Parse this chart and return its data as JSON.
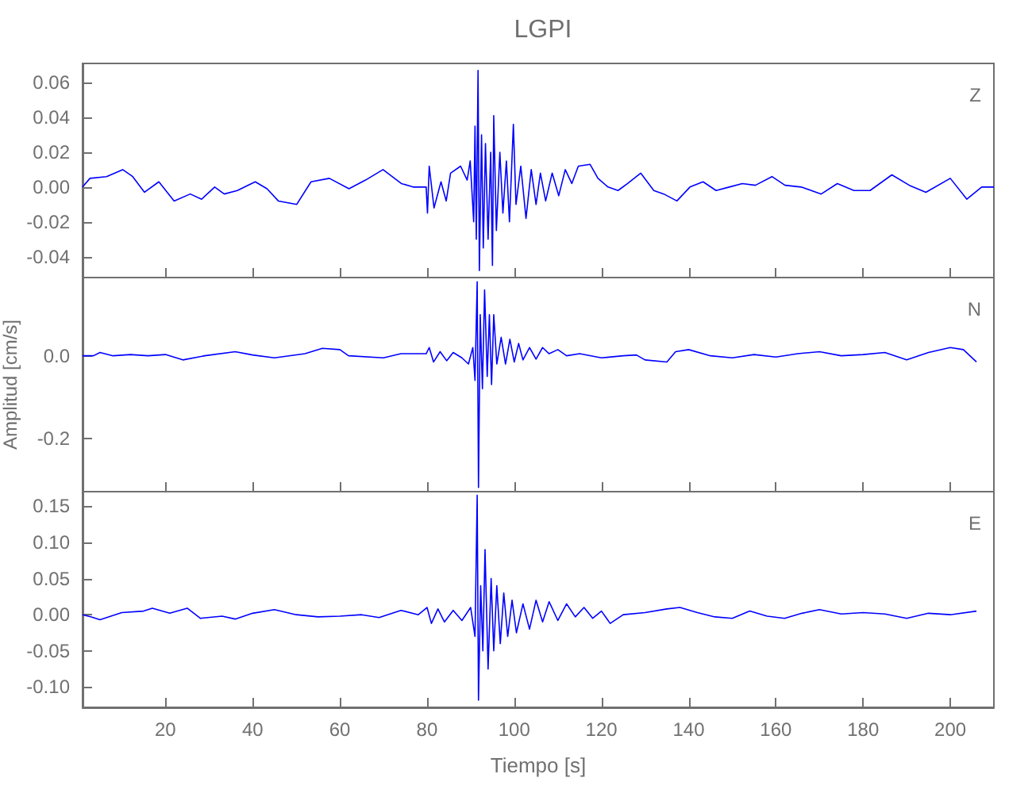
{
  "chart_data": [
    {
      "type": "line",
      "title": "LGPI",
      "annotations": [
        "Z"
      ],
      "xlim": [
        1,
        210
      ],
      "xticks": [
        20,
        40,
        60,
        80,
        100,
        120,
        140,
        160,
        180,
        200
      ],
      "tick_labels": "y",
      "ylim": [
        -0.052,
        0.071
      ],
      "yticks": [
        {
          "value": -0.04,
          "label": "-0.04"
        },
        {
          "value": -0.02,
          "label": "-0.02"
        },
        {
          "value": 0,
          "label": "0.00"
        },
        0.02,
        0.04,
        0.06
      ],
      "series": [
        {
          "color": "#0000ff",
          "x": [
            1,
            2.7,
            6.5,
            10.2,
            12.5,
            15.2,
            18.5,
            22,
            25.7,
            28.3,
            31.3,
            33.5,
            36.5,
            40.6,
            43.3,
            45.9,
            50.1,
            53.4,
            57.6,
            62.1,
            65.9,
            69.9,
            74.1,
            76.8,
            79.8,
            80.1,
            80.5,
            81.6,
            83.2,
            84.4,
            85.4,
            87.7,
            89.2,
            89.9,
            90.7,
            91,
            91.3,
            91.7,
            92,
            92.5,
            92.9,
            93.4,
            94,
            94.6,
            95,
            95.3,
            95.9,
            96.7,
            97.4,
            98.2,
            98.9,
            99.8,
            100.4,
            101.5,
            102.7,
            103.9,
            105,
            106,
            107.2,
            108.7,
            110.2,
            111.7,
            113.2,
            114.7,
            117.4,
            119.2,
            121.5,
            123.8,
            126,
            129,
            132,
            134.3,
            137.3,
            140.3,
            143.3,
            146.3,
            149.3,
            152.3,
            155.3,
            159.1,
            162.1,
            165.8,
            170.4,
            174.1,
            177.9,
            181.6,
            186.6,
            190.6,
            194.4,
            200,
            203.8,
            207.2,
            210
          ],
          "values": [
            0,
            0.005,
            0.006,
            0.01,
            0.006,
            -0.003,
            0.003,
            -0.008,
            -0.004,
            -0.007,
            0,
            -0.004,
            -0.002,
            0.003,
            -0.001,
            -0.008,
            -0.01,
            0.003,
            0.005,
            -0.001,
            0.004,
            0.01,
            0.002,
            0,
            0,
            -0.015,
            0.012,
            -0.012,
            0.003,
            -0.008,
            0.008,
            0.012,
            0.004,
            0.015,
            -0.02,
            0.035,
            -0.03,
            0.067,
            -0.048,
            0.03,
            -0.035,
            0.025,
            -0.03,
            0.02,
            -0.045,
            0.041,
            -0.025,
            0.02,
            -0.015,
            0.015,
            -0.02,
            0.036,
            -0.01,
            0.012,
            -0.018,
            0.01,
            -0.01,
            0.008,
            -0.008,
            0.008,
            -0.005,
            0.01,
            0.002,
            0.012,
            0.013,
            0.005,
            0,
            -0.002,
            0.002,
            0.008,
            -0.002,
            -0.004,
            -0.008,
            0,
            0.003,
            -0.002,
            0,
            0.002,
            0.001,
            0.006,
            0.001,
            0,
            -0.004,
            0.002,
            -0.002,
            -0.002,
            0.007,
            0.001,
            -0.003,
            0.005,
            -0.007,
            0,
            0
          ]
        }
      ]
    },
    {
      "type": "line",
      "ylabel": "Amplitud [cm/s]",
      "annotations": [
        "N"
      ],
      "xlim": [
        1,
        210
      ],
      "xticks": [
        20,
        40,
        60,
        80,
        100,
        120,
        140,
        160,
        180,
        200
      ],
      "tick_labels": "y",
      "ylim": [
        -0.33,
        0.19
      ],
      "yticks": [
        {
          "value": -0.2,
          "label": "-0.2"
        },
        {
          "value": 0,
          "label": "0.0"
        }
      ],
      "series": [
        {
          "color": "#0000ff",
          "x": [
            1,
            3.5,
            5,
            8,
            12,
            16,
            20,
            24,
            29,
            36,
            40,
            45,
            52,
            56,
            60,
            62,
            70,
            74,
            79.8,
            80.5,
            81.5,
            83,
            84.5,
            86,
            88,
            89.5,
            90.5,
            91,
            91.5,
            91.8,
            92.2,
            92.7,
            93.2,
            93.8,
            94.3,
            94.8,
            95.3,
            96,
            97,
            98,
            99,
            100,
            101,
            102,
            103.5,
            105,
            106.5,
            108,
            110,
            112,
            115,
            120,
            125,
            128,
            130,
            135,
            137,
            140,
            145,
            150,
            155,
            160,
            165,
            170,
            175,
            180,
            185,
            190,
            195,
            200,
            203,
            206
          ],
          "values": [
            0,
            0,
            0.008,
            0,
            0.003,
            0,
            0.003,
            -0.01,
            0,
            0.01,
            0.002,
            -0.005,
            0.005,
            0.018,
            0.015,
            0,
            -0.005,
            0.005,
            0.005,
            0.02,
            -0.015,
            0.01,
            -0.012,
            0.008,
            -0.005,
            -0.02,
            0.02,
            -0.06,
            0.18,
            -0.32,
            0.1,
            -0.08,
            0.16,
            -0.05,
            0.1,
            -0.07,
            0.1,
            -0.02,
            0.045,
            -0.02,
            0.04,
            -0.015,
            0.03,
            -0.01,
            0.02,
            -0.008,
            0.02,
            0.005,
            0.015,
            0,
            0.005,
            -0.005,
            0,
            0.002,
            -0.01,
            -0.015,
            0.01,
            0.015,
            0,
            -0.005,
            0.003,
            -0.003,
            0.005,
            0.01,
            0,
            0.003,
            0.008,
            -0.01,
            0.008,
            0.02,
            0.015,
            -0.015
          ]
        }
      ]
    },
    {
      "type": "line",
      "xlabel": "Tiempo [s]",
      "annotations": [
        "E"
      ],
      "xlim": [
        1,
        210
      ],
      "xticks": [
        20,
        40,
        60,
        80,
        100,
        120,
        140,
        160,
        180,
        200
      ],
      "ylim": [
        -0.128,
        0.17
      ],
      "yticks": [
        {
          "value": -0.1,
          "label": "-0.10"
        },
        {
          "value": -0.05,
          "label": "-0.05"
        },
        {
          "value": 0,
          "label": "0.00"
        },
        0.05,
        {
          "value": 0.1,
          "label": "0.10"
        },
        0.15
      ],
      "series": [
        {
          "color": "#0000ff",
          "x": [
            1,
            3,
            5,
            10,
            15,
            17,
            21,
            25,
            28,
            33,
            36,
            40,
            45,
            50,
            55,
            60,
            65,
            69,
            74,
            78,
            80,
            81,
            82.5,
            84,
            86,
            88,
            90,
            91,
            91.5,
            91.8,
            92.3,
            92.8,
            93.3,
            94,
            94.7,
            95.3,
            96,
            96.8,
            97.6,
            98.5,
            99.5,
            100.5,
            102,
            103.5,
            105,
            106.5,
            108,
            110,
            112,
            114,
            116,
            118,
            120,
            122,
            125,
            130,
            135,
            138,
            142,
            146,
            150,
            154,
            158,
            162,
            166,
            170,
            175,
            180,
            185,
            190,
            195,
            200,
            206
          ],
          "values": [
            0,
            -0.003,
            -0.007,
            0.003,
            0.005,
            0.009,
            0.002,
            0.009,
            -0.005,
            -0.002,
            -0.006,
            0.002,
            0.007,
            0,
            -0.003,
            -0.002,
            0,
            -0.004,
            0.006,
            0,
            0.01,
            -0.012,
            0.008,
            -0.01,
            0.006,
            -0.008,
            0.01,
            -0.03,
            0.165,
            -0.118,
            0.04,
            -0.05,
            0.09,
            -0.075,
            0.05,
            -0.05,
            0.04,
            -0.04,
            0.03,
            -0.03,
            0.02,
            -0.025,
            0.015,
            -0.02,
            0.02,
            -0.01,
            0.018,
            -0.008,
            0.015,
            -0.003,
            0.01,
            -0.005,
            0.005,
            -0.012,
            0,
            0.003,
            0.008,
            0.01,
            0.003,
            -0.003,
            -0.005,
            0.005,
            -0.002,
            -0.005,
            0.002,
            0.007,
            0.001,
            0.003,
            0.001,
            -0.005,
            0.002,
            0,
            0.005
          ]
        }
      ]
    }
  ]
}
